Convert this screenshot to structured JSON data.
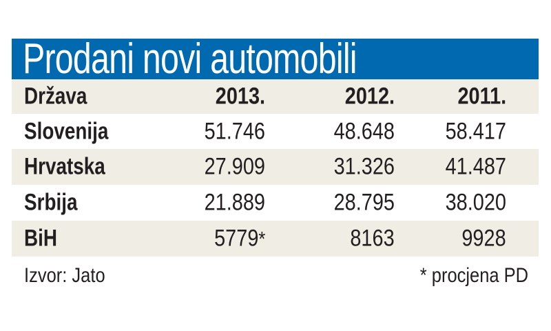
{
  "title": "Prodani novi automobili",
  "colors": {
    "title_bar": "#0069b0",
    "stripe": "#efede4"
  },
  "chart_data": {
    "type": "table",
    "title": "Prodani novi automobili",
    "columns": [
      "Država",
      "2013.",
      "2012.",
      "2011."
    ],
    "rows": [
      {
        "country": "Slovenija",
        "values": [
          "51.746",
          "48.648",
          "58.417"
        ]
      },
      {
        "country": "Hrvatska",
        "values": [
          "27.909",
          "31.326",
          "41.487"
        ]
      },
      {
        "country": "Srbija",
        "values": [
          "21.889",
          "28.795",
          "38.020"
        ]
      },
      {
        "country": "BiH",
        "values": [
          "5779",
          "8163",
          "9928"
        ],
        "note_marks": [
          "*",
          "",
          ""
        ]
      }
    ]
  },
  "footer": {
    "source": "Izvor: Jato",
    "note": "* procjena PD"
  }
}
